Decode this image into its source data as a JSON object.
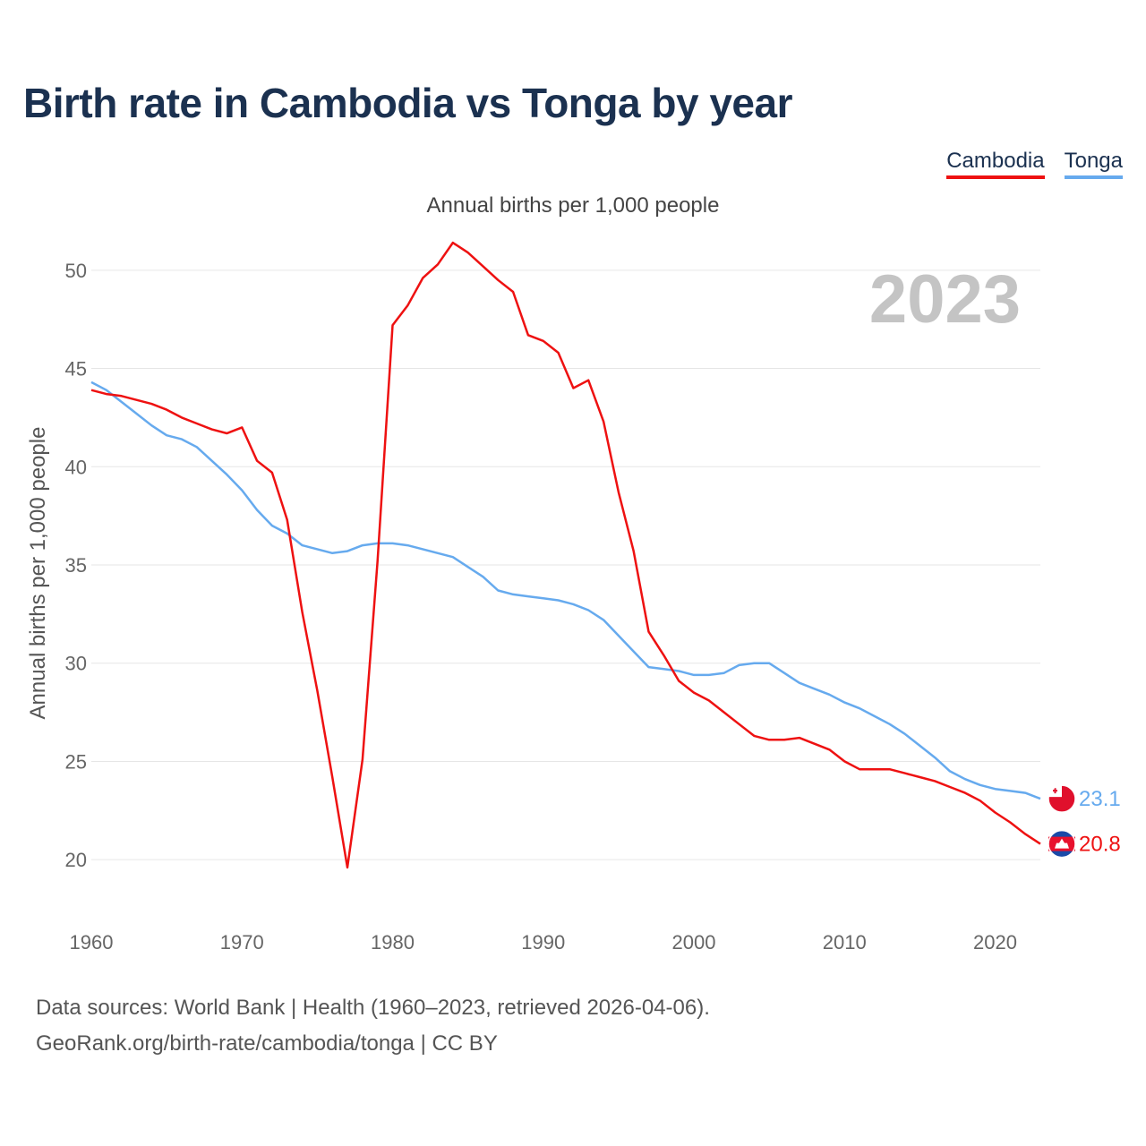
{
  "title": "Birth rate in Cambodia vs Tonga by year",
  "subtitle": "Annual births per 1,000 people",
  "footer": {
    "line1": "Data sources: World Bank | Health (1960–2023, retrieved 2026-04-06).",
    "line2": "GeoRank.org/birth-rate/cambodia/tonga | CC BY"
  },
  "year_label": "2023",
  "colors": {
    "cambodia": "#ee1111",
    "tonga": "#66aaee",
    "title": "#1b3150",
    "grid": "#e6e6e6",
    "year": "#c4c4c4"
  },
  "chart_data": {
    "type": "line",
    "title": "Birth rate in Cambodia vs Tonga by year",
    "ylabel": "Annual births per 1,000 people",
    "xlabel": "",
    "xlim": [
      1960,
      2023
    ],
    "ylim": [
      17,
      53
    ],
    "x_ticks": [
      1960,
      1970,
      1980,
      1990,
      2000,
      2010,
      2020
    ],
    "y_ticks": [
      20,
      25,
      30,
      35,
      40,
      45,
      50
    ],
    "legend": "top-right",
    "x": [
      1960,
      1961,
      1962,
      1963,
      1964,
      1965,
      1966,
      1967,
      1968,
      1969,
      1970,
      1971,
      1972,
      1973,
      1974,
      1975,
      1976,
      1977,
      1978,
      1979,
      1980,
      1981,
      1982,
      1983,
      1984,
      1985,
      1986,
      1987,
      1988,
      1989,
      1990,
      1991,
      1992,
      1993,
      1994,
      1995,
      1996,
      1997,
      1998,
      1999,
      2000,
      2001,
      2002,
      2003,
      2004,
      2005,
      2006,
      2007,
      2008,
      2009,
      2010,
      2011,
      2012,
      2013,
      2014,
      2015,
      2016,
      2017,
      2018,
      2019,
      2020,
      2021,
      2022,
      2023
    ],
    "series": [
      {
        "name": "Cambodia",
        "end_label": "20.8",
        "values": [
          43.9,
          43.7,
          43.6,
          43.4,
          43.2,
          42.9,
          42.5,
          42.2,
          41.9,
          41.7,
          42.0,
          40.3,
          39.7,
          37.3,
          32.6,
          28.6,
          24.2,
          19.6,
          25.1,
          35.2,
          47.2,
          48.2,
          49.6,
          50.3,
          51.4,
          50.9,
          50.2,
          49.5,
          48.9,
          46.7,
          46.4,
          45.8,
          44.0,
          44.4,
          42.3,
          38.7,
          35.7,
          31.6,
          30.4,
          29.1,
          28.5,
          28.1,
          27.5,
          26.9,
          26.3,
          26.1,
          26.1,
          26.2,
          25.9,
          25.6,
          25.0,
          24.6,
          24.6,
          24.6,
          24.4,
          24.2,
          24.0,
          23.7,
          23.4,
          23.0,
          22.4,
          21.9,
          21.3,
          20.8
        ]
      },
      {
        "name": "Tonga",
        "end_label": "23.1",
        "values": [
          44.3,
          43.9,
          43.3,
          42.7,
          42.1,
          41.6,
          41.4,
          41.0,
          40.3,
          39.6,
          38.8,
          37.8,
          37.0,
          36.6,
          36.0,
          35.8,
          35.6,
          35.7,
          36.0,
          36.1,
          36.1,
          36.0,
          35.8,
          35.6,
          35.4,
          34.9,
          34.4,
          33.7,
          33.5,
          33.4,
          33.3,
          33.2,
          33.0,
          32.7,
          32.2,
          31.4,
          30.6,
          29.8,
          29.7,
          29.6,
          29.4,
          29.4,
          29.5,
          29.9,
          30.0,
          30.0,
          29.5,
          29.0,
          28.7,
          28.4,
          28.0,
          27.7,
          27.3,
          26.9,
          26.4,
          25.8,
          25.2,
          24.5,
          24.1,
          23.8,
          23.6,
          23.5,
          23.4,
          23.1
        ]
      }
    ]
  }
}
